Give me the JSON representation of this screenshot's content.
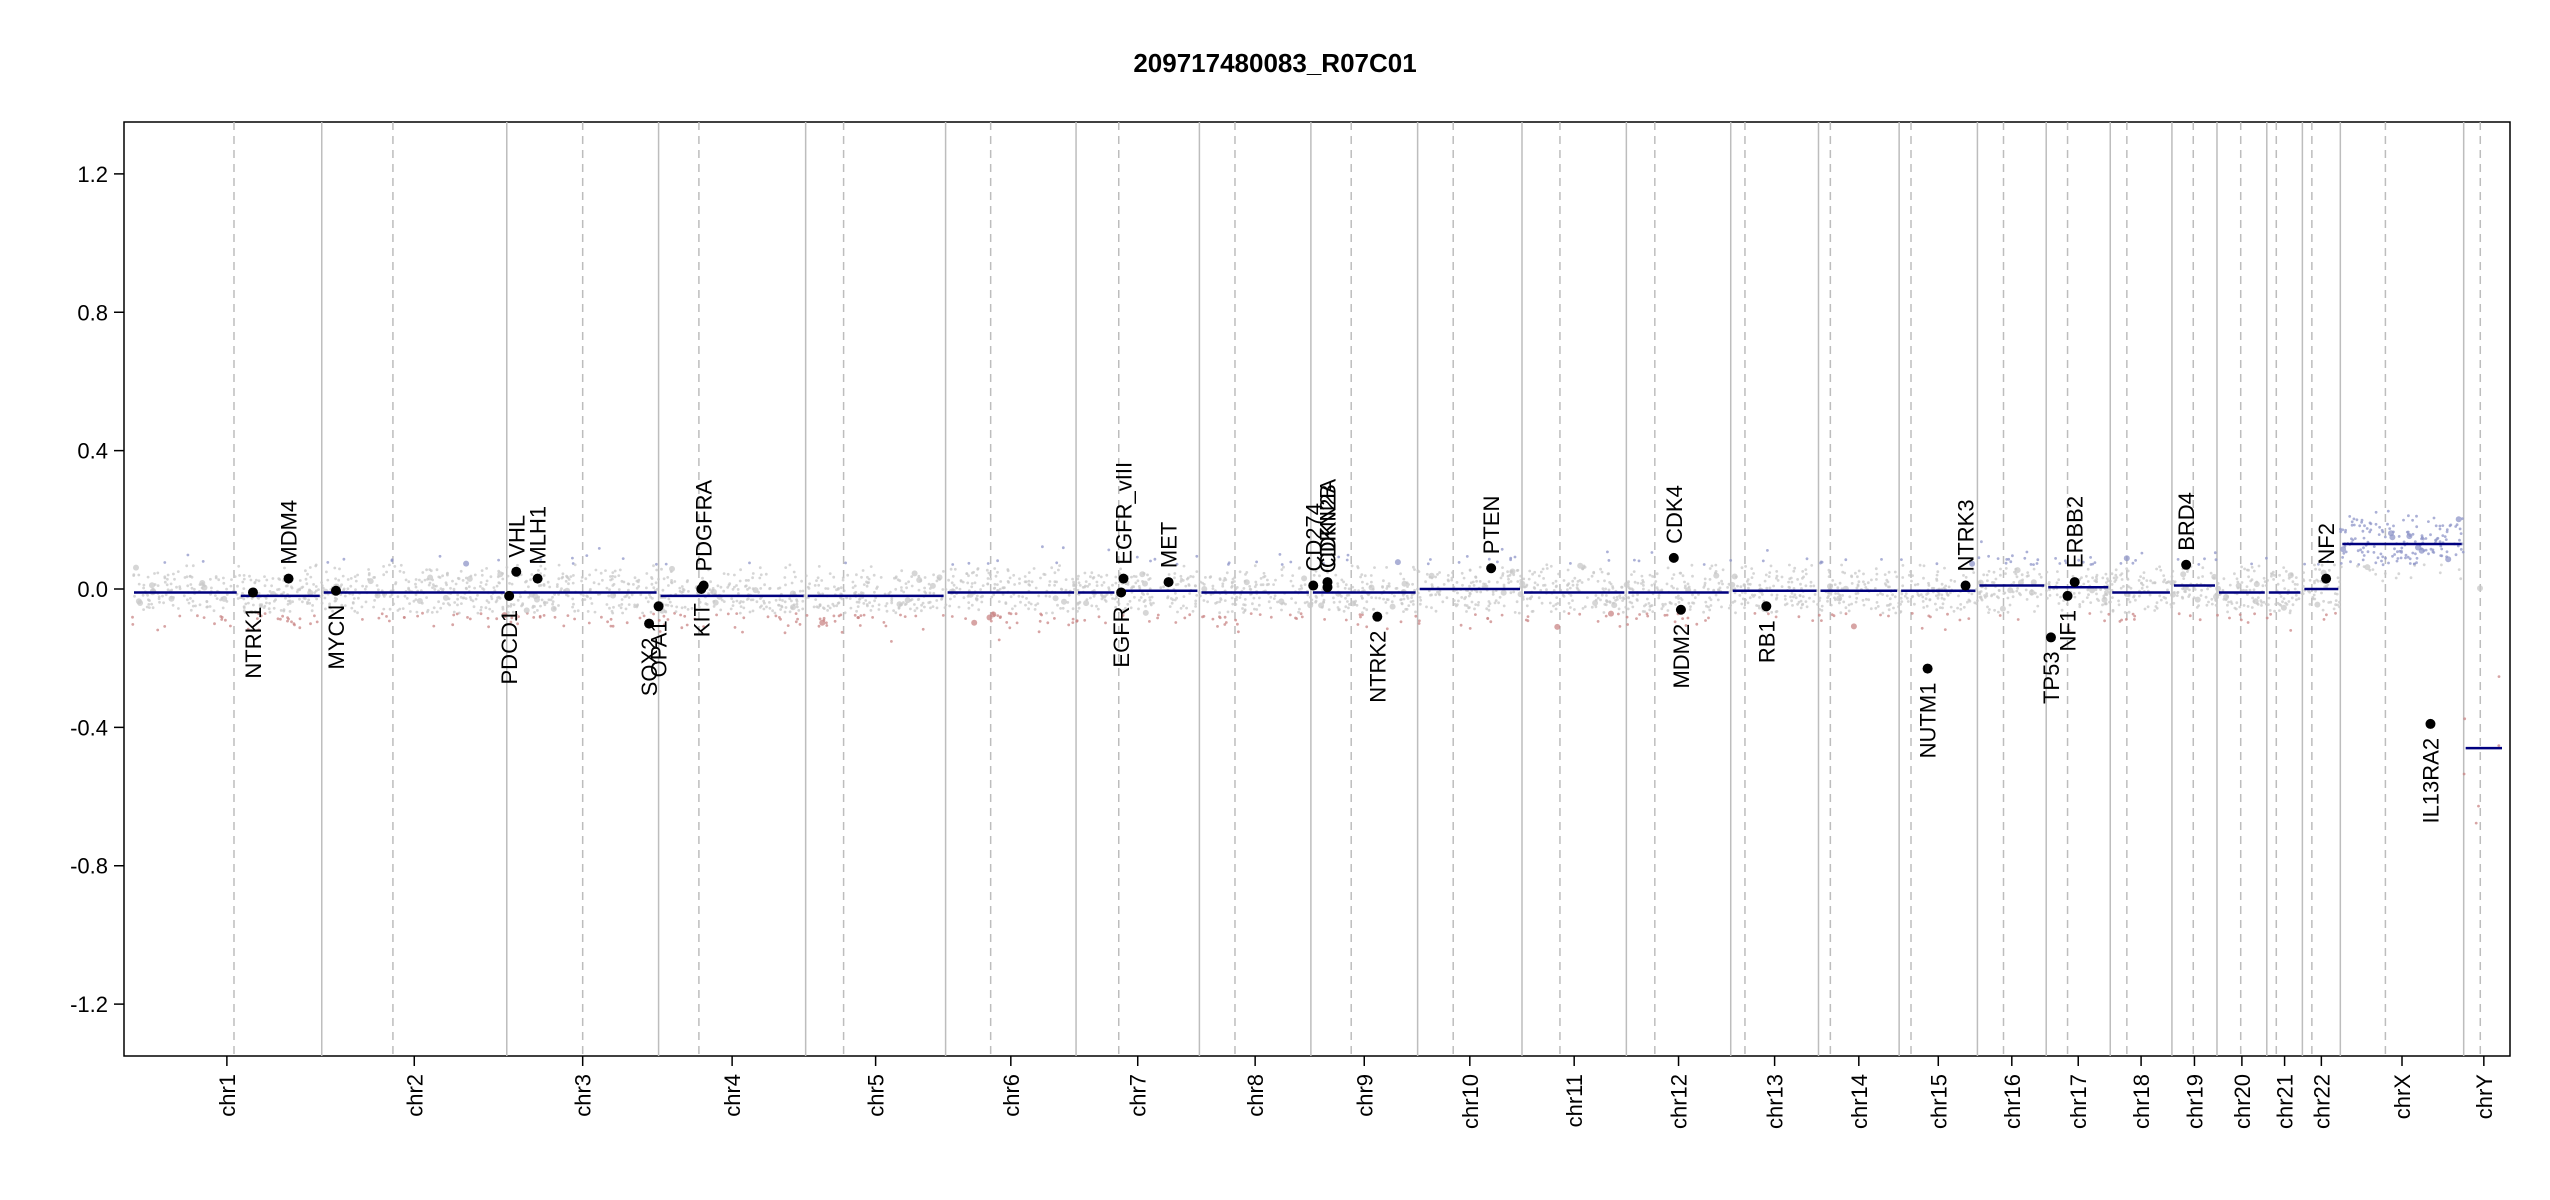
{
  "chart_data": {
    "type": "scatter",
    "title": "209717480083_R07C01",
    "xlabel": "",
    "ylabel": "",
    "ylim": [
      -1.35,
      1.35
    ],
    "y_ticks": [
      1.2,
      0.8,
      0.4,
      0.0,
      -0.4,
      -0.8,
      -1.2
    ],
    "y_tick_labels": [
      "1.2",
      "0.8",
      "0.4",
      "0.0",
      "-0.4",
      "-0.8",
      "-1.2"
    ],
    "grid": false,
    "colors": {
      "segment": "#00007f",
      "point_gain": "#8f96c8",
      "point_neutral": "#c8c8c8",
      "point_loss": "#c98585",
      "gene_point": "#000000",
      "chrom_line": "#bdbdbd",
      "centromere_line": "#bdbdbd"
    },
    "chromosomes": [
      {
        "name": "chr1",
        "start": 0.0,
        "end": 0.08,
        "centromere": 0.043
      },
      {
        "name": "chr2",
        "start": 0.08,
        "end": 0.158,
        "centromere": 0.11
      },
      {
        "name": "chr3",
        "start": 0.158,
        "end": 0.222,
        "centromere": 0.19
      },
      {
        "name": "chr4",
        "start": 0.222,
        "end": 0.284,
        "centromere": 0.239
      },
      {
        "name": "chr5",
        "start": 0.284,
        "end": 0.343,
        "centromere": 0.3
      },
      {
        "name": "chr6",
        "start": 0.343,
        "end": 0.398,
        "centromere": 0.362
      },
      {
        "name": "chr7",
        "start": 0.398,
        "end": 0.45,
        "centromere": 0.416
      },
      {
        "name": "chr8",
        "start": 0.45,
        "end": 0.497,
        "centromere": 0.465
      },
      {
        "name": "chr9",
        "start": 0.497,
        "end": 0.542,
        "centromere": 0.514
      },
      {
        "name": "chr10",
        "start": 0.542,
        "end": 0.586,
        "centromere": 0.557
      },
      {
        "name": "chr11",
        "start": 0.586,
        "end": 0.63,
        "centromere": 0.602
      },
      {
        "name": "chr12",
        "start": 0.63,
        "end": 0.674,
        "centromere": 0.642
      },
      {
        "name": "chr13",
        "start": 0.674,
        "end": 0.711,
        "centromere": 0.68
      },
      {
        "name": "chr14",
        "start": 0.711,
        "end": 0.745,
        "centromere": 0.716
      },
      {
        "name": "chr15",
        "start": 0.745,
        "end": 0.778,
        "centromere": 0.75
      },
      {
        "name": "chr16",
        "start": 0.778,
        "end": 0.807,
        "centromere": 0.789
      },
      {
        "name": "chr17",
        "start": 0.807,
        "end": 0.834,
        "centromere": 0.816
      },
      {
        "name": "chr18",
        "start": 0.834,
        "end": 0.86,
        "centromere": 0.841
      },
      {
        "name": "chr19",
        "start": 0.86,
        "end": 0.879,
        "centromere": 0.869
      },
      {
        "name": "chr20",
        "start": 0.879,
        "end": 0.9,
        "centromere": 0.889
      },
      {
        "name": "chr21",
        "start": 0.9,
        "end": 0.915,
        "centromere": 0.904
      },
      {
        "name": "chr22",
        "start": 0.915,
        "end": 0.931,
        "centromere": 0.919
      },
      {
        "name": "chrX",
        "start": 0.931,
        "end": 0.983,
        "centromere": 0.95
      },
      {
        "name": "chrY",
        "start": 0.983,
        "end": 1.0,
        "centromere": 0.99
      }
    ],
    "segments": [
      {
        "chrom": "chr1",
        "values": [
          -0.01,
          -0.02
        ],
        "breaks": [
          0.045
        ]
      },
      {
        "chrom": "chr2",
        "values": [
          -0.01
        ]
      },
      {
        "chrom": "chr3",
        "values": [
          -0.01
        ]
      },
      {
        "chrom": "chr4",
        "values": [
          -0.02
        ]
      },
      {
        "chrom": "chr5",
        "values": [
          -0.02
        ]
      },
      {
        "chrom": "chr6",
        "values": [
          -0.01
        ]
      },
      {
        "chrom": "chr7",
        "values": [
          -0.01,
          -0.005
        ],
        "breaks": [
          0.415
        ]
      },
      {
        "chrom": "chr8",
        "values": [
          -0.01
        ]
      },
      {
        "chrom": "chr9",
        "values": [
          -0.01
        ]
      },
      {
        "chrom": "chr10",
        "values": [
          0.0
        ]
      },
      {
        "chrom": "chr11",
        "values": [
          -0.01
        ]
      },
      {
        "chrom": "chr12",
        "values": [
          -0.01
        ]
      },
      {
        "chrom": "chr13",
        "values": [
          -0.005
        ]
      },
      {
        "chrom": "chr14",
        "values": [
          -0.005
        ]
      },
      {
        "chrom": "chr15",
        "values": [
          -0.005
        ]
      },
      {
        "chrom": "chr16",
        "values": [
          0.01
        ]
      },
      {
        "chrom": "chr17",
        "values": [
          0.005
        ]
      },
      {
        "chrom": "chr18",
        "values": [
          -0.01
        ]
      },
      {
        "chrom": "chr19",
        "values": [
          0.01
        ]
      },
      {
        "chrom": "chr20",
        "values": [
          -0.01
        ]
      },
      {
        "chrom": "chr21",
        "values": [
          -0.01
        ]
      },
      {
        "chrom": "chr22",
        "values": [
          0.0
        ]
      },
      {
        "chrom": "chrX",
        "values": [
          0.13
        ]
      },
      {
        "chrom": "chrY",
        "values": [
          -0.46
        ]
      }
    ],
    "genes": [
      {
        "name": "NTRK1",
        "x": 0.051,
        "y": -0.01,
        "label_side": "below"
      },
      {
        "name": "MDM4",
        "x": 0.066,
        "y": 0.03,
        "label_side": "above"
      },
      {
        "name": "MYCN",
        "x": 0.086,
        "y": -0.005,
        "label_side": "below"
      },
      {
        "name": "PDCD1",
        "x": 0.159,
        "y": -0.02,
        "label_side": "below"
      },
      {
        "name": "VHL",
        "x": 0.162,
        "y": 0.05,
        "label_side": "above"
      },
      {
        "name": "MLH1",
        "x": 0.171,
        "y": 0.03,
        "label_side": "above"
      },
      {
        "name": "SOX2",
        "x": 0.218,
        "y": -0.1,
        "label_side": "below"
      },
      {
        "name": "OPA1",
        "x": 0.222,
        "y": -0.05,
        "label_side": "below"
      },
      {
        "name": "KIT",
        "x": 0.24,
        "y": 0.0,
        "label_side": "below"
      },
      {
        "name": "PDGFRA",
        "x": 0.241,
        "y": 0.01,
        "label_side": "above"
      },
      {
        "name": "EGFR",
        "x": 0.417,
        "y": -0.01,
        "label_side": "below"
      },
      {
        "name": "EGFR_vIII",
        "x": 0.418,
        "y": 0.03,
        "label_side": "above"
      },
      {
        "name": "MET",
        "x": 0.437,
        "y": 0.02,
        "label_side": "above"
      },
      {
        "name": "CD274",
        "x": 0.498,
        "y": 0.01,
        "label_side": "above"
      },
      {
        "name": "CDKN2A",
        "x": 0.504,
        "y": 0.02,
        "label_side": "above"
      },
      {
        "name": "CDKN2B",
        "x": 0.504,
        "y": 0.005,
        "label_side": "above"
      },
      {
        "name": "NTRK2",
        "x": 0.525,
        "y": -0.08,
        "label_side": "below"
      },
      {
        "name": "PTEN",
        "x": 0.573,
        "y": 0.06,
        "label_side": "above"
      },
      {
        "name": "CDK4",
        "x": 0.65,
        "y": 0.09,
        "label_side": "above"
      },
      {
        "name": "MDM2",
        "x": 0.653,
        "y": -0.06,
        "label_side": "below"
      },
      {
        "name": "RB1",
        "x": 0.689,
        "y": -0.05,
        "label_side": "below"
      },
      {
        "name": "NUTM1",
        "x": 0.757,
        "y": -0.23,
        "label_side": "below"
      },
      {
        "name": "NTRK3",
        "x": 0.773,
        "y": 0.01,
        "label_side": "above"
      },
      {
        "name": "TP53",
        "x": 0.809,
        "y": -0.14,
        "label_side": "below"
      },
      {
        "name": "NF1",
        "x": 0.816,
        "y": -0.02,
        "label_side": "below"
      },
      {
        "name": "ERBB2",
        "x": 0.819,
        "y": 0.02,
        "label_side": "above"
      },
      {
        "name": "BRD4",
        "x": 0.866,
        "y": 0.07,
        "label_side": "above"
      },
      {
        "name": "NF2",
        "x": 0.925,
        "y": 0.03,
        "label_side": "above"
      },
      {
        "name": "IL13RA2",
        "x": 0.969,
        "y": -0.39,
        "label_side": "below"
      }
    ]
  }
}
